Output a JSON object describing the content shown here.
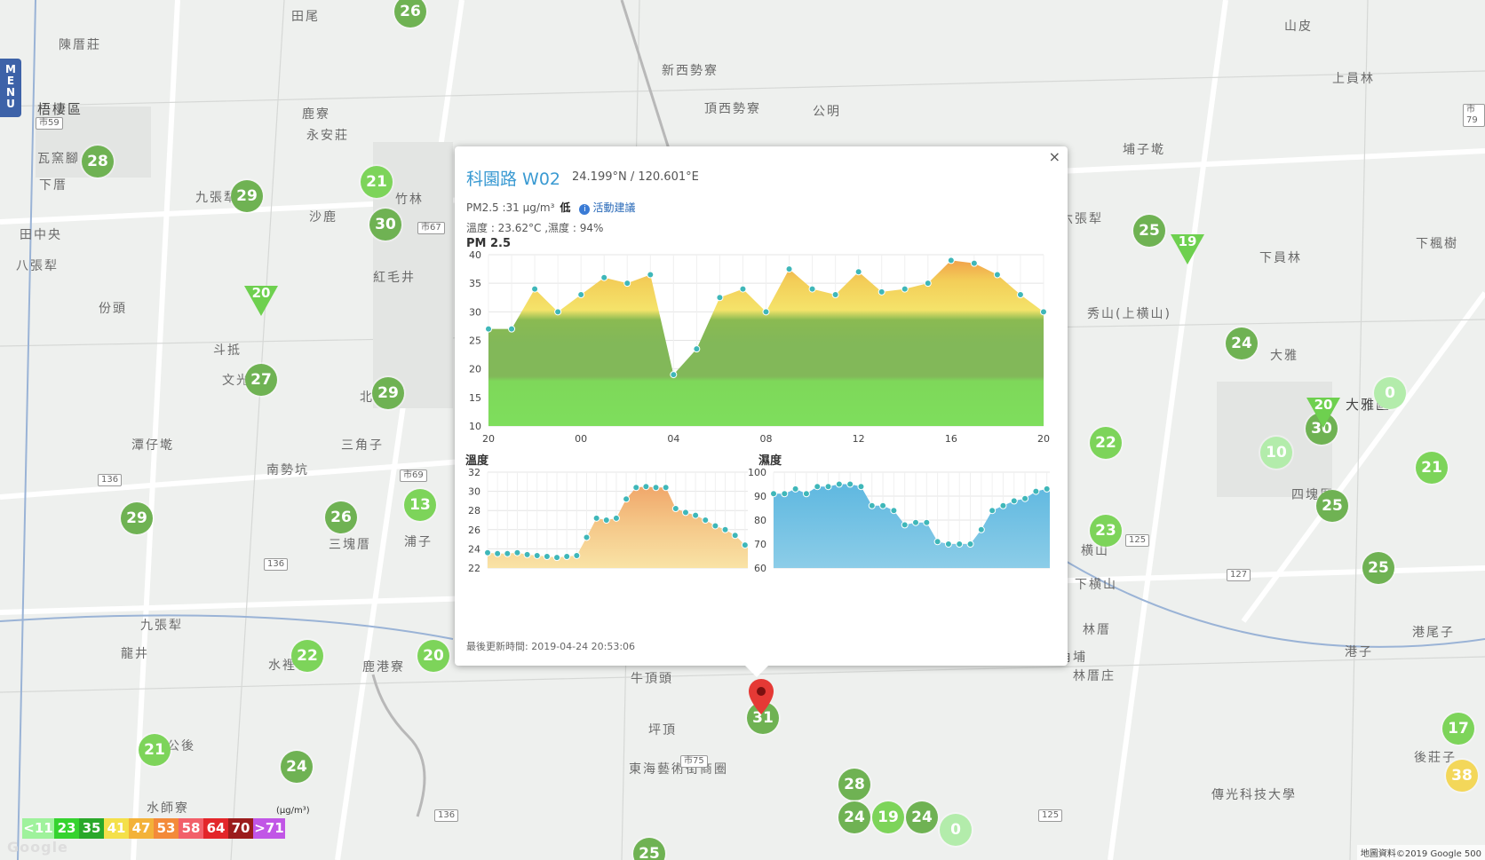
{
  "menu": {
    "label": "MENU"
  },
  "places": [
    {
      "name": "田尾",
      "kind": "place"
    },
    {
      "name": "陳厝莊",
      "kind": "place"
    },
    {
      "name": "梧棲區",
      "kind": "district"
    },
    {
      "name": "瓦窯腳",
      "kind": "place"
    },
    {
      "name": "下厝",
      "kind": "place"
    },
    {
      "name": "鹿寮",
      "kind": "place"
    },
    {
      "name": "永安莊",
      "kind": "place"
    },
    {
      "name": "九張犁",
      "kind": "place"
    },
    {
      "name": "沙鹿",
      "kind": "place"
    },
    {
      "name": "竹林",
      "kind": "place"
    },
    {
      "name": "田中央",
      "kind": "place"
    },
    {
      "name": "八張犁",
      "kind": "place"
    },
    {
      "name": "份頭",
      "kind": "place"
    },
    {
      "name": "紅毛井",
      "kind": "place"
    },
    {
      "name": "斗抵",
      "kind": "place"
    },
    {
      "name": "文光莊",
      "kind": "place"
    },
    {
      "name": "北勢頭",
      "kind": "place"
    },
    {
      "name": "三角子",
      "kind": "place"
    },
    {
      "name": "潭仔墘",
      "kind": "place"
    },
    {
      "name": "南勢坑",
      "kind": "place"
    },
    {
      "name": "三塊厝",
      "kind": "place"
    },
    {
      "name": "浦子",
      "kind": "place"
    },
    {
      "name": "九張犁",
      "kind": "place"
    },
    {
      "name": "龍井",
      "kind": "place"
    },
    {
      "name": "水裡社",
      "kind": "place"
    },
    {
      "name": "鹿港寮",
      "kind": "place"
    },
    {
      "name": "土地公後",
      "kind": "place"
    },
    {
      "name": "新西勢寮",
      "kind": "place"
    },
    {
      "name": "頂西勢寮",
      "kind": "place"
    },
    {
      "name": "公明",
      "kind": "place"
    },
    {
      "name": "山皮",
      "kind": "place"
    },
    {
      "name": "上員林",
      "kind": "place"
    },
    {
      "name": "埔子墘",
      "kind": "place"
    },
    {
      "name": "六張犁",
      "kind": "place"
    },
    {
      "name": "下員林",
      "kind": "place"
    },
    {
      "name": "下楓樹",
      "kind": "place"
    },
    {
      "name": "秀山(上横山)",
      "kind": "place"
    },
    {
      "name": "大雅",
      "kind": "place"
    },
    {
      "name": "大雅區",
      "kind": "district"
    },
    {
      "name": "四塊厝",
      "kind": "place"
    },
    {
      "name": "横山",
      "kind": "place"
    },
    {
      "name": "下横山",
      "kind": "place"
    },
    {
      "name": "林厝",
      "kind": "place"
    },
    {
      "name": "三角埔",
      "kind": "place"
    },
    {
      "name": "林厝庄",
      "kind": "place"
    },
    {
      "name": "港子",
      "kind": "place"
    },
    {
      "name": "港尾子",
      "kind": "place"
    },
    {
      "name": "牛頂頭",
      "kind": "place"
    },
    {
      "name": "坪頂",
      "kind": "place"
    },
    {
      "name": "東海藝術街商圈",
      "kind": "place"
    },
    {
      "name": "後莊子",
      "kind": "place"
    },
    {
      "name": "傳光科技大學",
      "kind": "place"
    },
    {
      "name": "水師寮",
      "kind": "place"
    }
  ],
  "shields": [
    "市59",
    "市67",
    "136",
    "136",
    "市69",
    "市75",
    "136",
    "125",
    "127",
    "125",
    "市79"
  ],
  "markers": [
    {
      "value": "26",
      "level": "green"
    },
    {
      "value": "28",
      "level": "green"
    },
    {
      "value": "29",
      "level": "green"
    },
    {
      "value": "21",
      "level": "light"
    },
    {
      "value": "30",
      "level": "green"
    },
    {
      "value": "27",
      "level": "green"
    },
    {
      "value": "29",
      "level": "green"
    },
    {
      "value": "13",
      "level": "light"
    },
    {
      "value": "26",
      "level": "green"
    },
    {
      "value": "29",
      "level": "green"
    },
    {
      "value": "22",
      "level": "light"
    },
    {
      "value": "20",
      "level": "light"
    },
    {
      "value": "21",
      "level": "light"
    },
    {
      "value": "24",
      "level": "green"
    },
    {
      "value": "25",
      "level": "green"
    },
    {
      "value": "24",
      "level": "green"
    },
    {
      "value": "22",
      "level": "light"
    },
    {
      "value": "23",
      "level": "light"
    },
    {
      "value": "10",
      "level": "pale"
    },
    {
      "value": "30",
      "level": "green"
    },
    {
      "value": "0",
      "level": "pale"
    },
    {
      "value": "21",
      "level": "light"
    },
    {
      "value": "25",
      "level": "green"
    },
    {
      "value": "25",
      "level": "green"
    },
    {
      "value": "17",
      "level": "light"
    },
    {
      "value": "38",
      "level": "yellow"
    },
    {
      "value": "31",
      "level": "green"
    },
    {
      "value": "28",
      "level": "green"
    },
    {
      "value": "24",
      "level": "green"
    },
    {
      "value": "19",
      "level": "light"
    },
    {
      "value": "24",
      "level": "green"
    },
    {
      "value": "0",
      "level": "pale"
    },
    {
      "value": "25",
      "level": "green"
    }
  ],
  "triangles": [
    {
      "value": "20"
    },
    {
      "value": "19"
    },
    {
      "value": "20"
    }
  ],
  "popup": {
    "station": "科園路 W02",
    "coords": "24.199°N / 120.601°E",
    "pm_text": "PM2.5 :31 μg/m³",
    "pm_level": "低",
    "advice_icon": "info-icon",
    "advice_label": "活動建議",
    "temp_humidity": "溫度 : 23.62°C ,濕度 : 94%",
    "pm_chart_title": "PM 2.5",
    "temp_chart_title": "溫度",
    "hum_chart_title": "濕度",
    "updated": "最後更新時間: 2019-04-24 20:53:06",
    "close_label": "×"
  },
  "legend": {
    "cells": [
      {
        "label": "<11",
        "color": "#9ff29c"
      },
      {
        "label": "23",
        "color": "#35d32f"
      },
      {
        "label": "35",
        "color": "#2aa82a"
      },
      {
        "label": "41",
        "color": "#f4e04a"
      },
      {
        "label": "47",
        "color": "#f3b239"
      },
      {
        "label": "53",
        "color": "#f38a3a"
      },
      {
        "label": "58",
        "color": "#f2606a"
      },
      {
        "label": "64",
        "color": "#e3262a"
      },
      {
        "label": "70",
        "color": "#9b1c1c"
      },
      {
        "label": ">71",
        "color": "#c156e6"
      }
    ],
    "unit": "(μg/m³)"
  },
  "attribution": "地圖資料©2019 Google   500",
  "google": "Google",
  "chart_data": [
    {
      "type": "area",
      "title": "PM 2.5",
      "x_ticks": [
        "20",
        "00",
        "04",
        "08",
        "12",
        "16",
        "20"
      ],
      "ylim": [
        10,
        40
      ],
      "y_ticks": [
        10,
        15,
        20,
        25,
        30,
        35,
        40
      ],
      "values": [
        27,
        27,
        34,
        30,
        33,
        36,
        35,
        36.5,
        19,
        23.5,
        32.5,
        34,
        30,
        37.5,
        34,
        33,
        37,
        33.5,
        34,
        35,
        39,
        38.5,
        36.5,
        33,
        30
      ]
    },
    {
      "type": "area",
      "title": "溫度",
      "ylim": [
        22,
        32
      ],
      "y_ticks": [
        22,
        24,
        26,
        28,
        30,
        32
      ],
      "values": [
        23.6,
        23.5,
        23.5,
        23.6,
        23.4,
        23.3,
        23.2,
        23.1,
        23.2,
        23.3,
        25.2,
        27.2,
        27,
        27.2,
        29.2,
        30.4,
        30.5,
        30.4,
        30.4,
        28.2,
        27.8,
        27.5,
        27,
        26.4,
        26,
        25.4,
        24.4,
        24.1
      ]
    },
    {
      "type": "area",
      "title": "濕度",
      "ylim": [
        60,
        100
      ],
      "y_ticks": [
        60,
        70,
        80,
        90,
        100
      ],
      "values": [
        91,
        91,
        93,
        91,
        94,
        94,
        95,
        95,
        94,
        86,
        86,
        84,
        78,
        79,
        79,
        71,
        70,
        70,
        70,
        76,
        84,
        86,
        88,
        89,
        92,
        93,
        92
      ]
    }
  ]
}
